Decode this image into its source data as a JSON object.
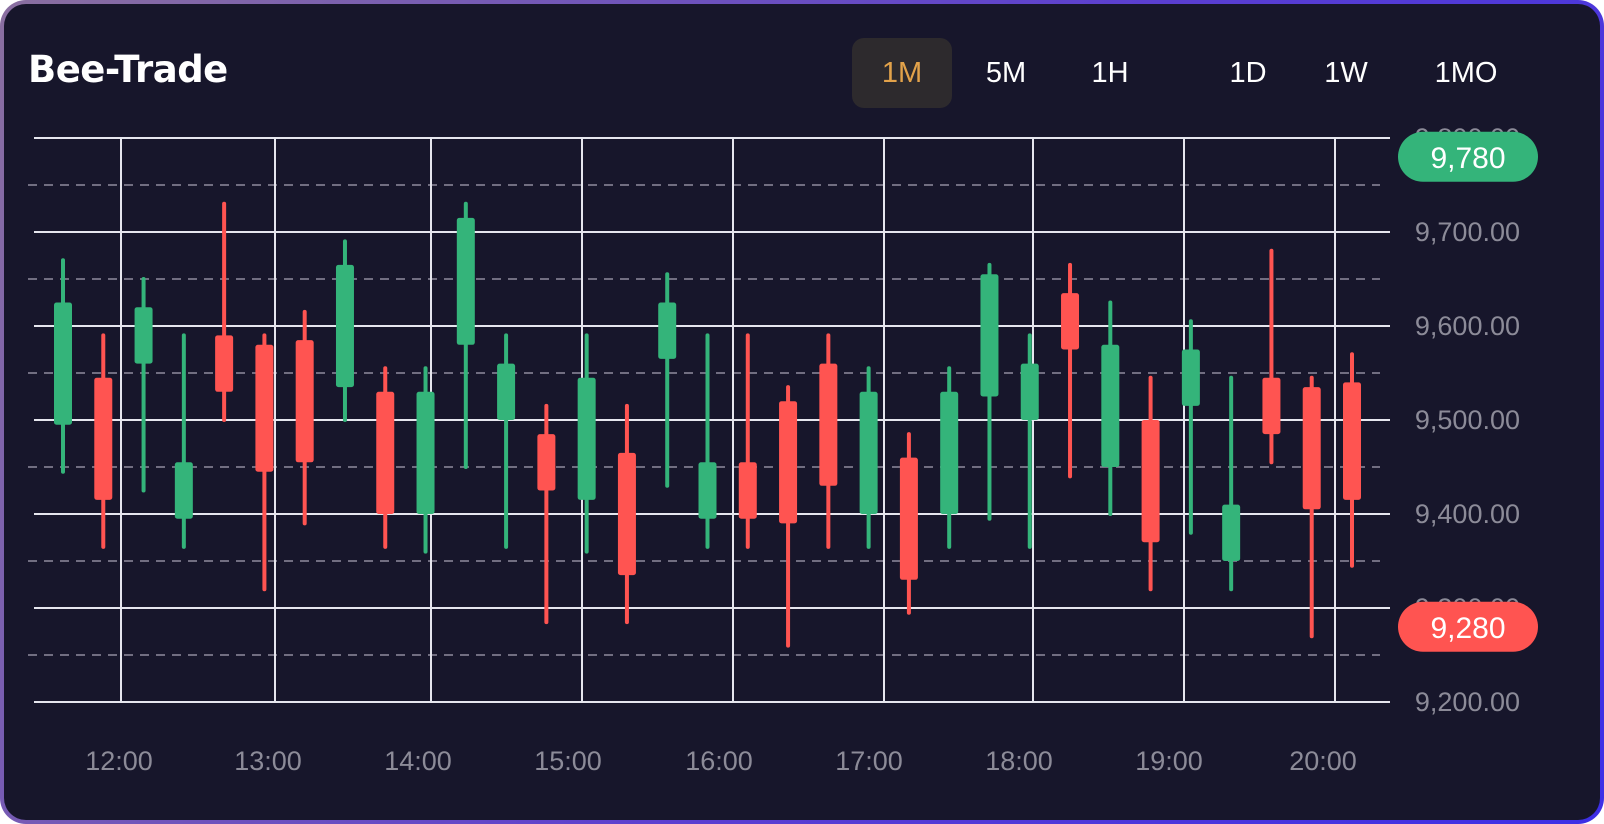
{
  "app": {
    "title": "Bee-Trade"
  },
  "timeframes": [
    {
      "label": "1M",
      "active": true
    },
    {
      "label": "5M",
      "active": false
    },
    {
      "label": "1H",
      "active": false
    },
    {
      "label": "1D",
      "active": false
    },
    {
      "label": "1W",
      "active": false
    },
    {
      "label": "1MO",
      "active": false
    }
  ],
  "colors": {
    "up": "#34b47a",
    "down": "#ff5451",
    "accent": "#e2a24a",
    "background": "#17162b",
    "grid": "#e6e6ee"
  },
  "chart_data": {
    "type": "candlestick",
    "title": "",
    "xlabel": "",
    "ylabel": "",
    "ylim": [
      9200,
      9800
    ],
    "y_ticks": [
      "9,800.00",
      "9,700.00",
      "9,600.00",
      "9,500.00",
      "9,400.00",
      "9,300.00",
      "9,200.00"
    ],
    "x_ticks": [
      "12:00",
      "13:00",
      "14:00",
      "15:00",
      "16:00",
      "17:00",
      "18:00",
      "19:00",
      "20:00"
    ],
    "grid": true,
    "badges": [
      {
        "label": "9,780",
        "value": 9780,
        "direction": "up"
      },
      {
        "label": "9,280",
        "value": 9280,
        "direction": "down"
      }
    ],
    "candles": [
      {
        "direction": "up",
        "open": 9495,
        "close": 9625,
        "high": 9670,
        "low": 9445
      },
      {
        "direction": "down",
        "open": 9545,
        "close": 9415,
        "high": 9590,
        "low": 9365
      },
      {
        "direction": "up",
        "open": 9560,
        "close": 9620,
        "high": 9650,
        "low": 9425
      },
      {
        "direction": "up",
        "open": 9395,
        "close": 9455,
        "high": 9590,
        "low": 9365
      },
      {
        "direction": "down",
        "open": 9590,
        "close": 9530,
        "high": 9730,
        "low": 9500
      },
      {
        "direction": "down",
        "open": 9580,
        "close": 9445,
        "high": 9590,
        "low": 9320
      },
      {
        "direction": "down",
        "open": 9585,
        "close": 9455,
        "high": 9615,
        "low": 9390
      },
      {
        "direction": "up",
        "open": 9535,
        "close": 9665,
        "high": 9690,
        "low": 9500
      },
      {
        "direction": "down",
        "open": 9530,
        "close": 9400,
        "high": 9555,
        "low": 9365
      },
      {
        "direction": "up",
        "open": 9400,
        "close": 9530,
        "high": 9555,
        "low": 9360
      },
      {
        "direction": "up",
        "open": 9580,
        "close": 9715,
        "high": 9730,
        "low": 9450
      },
      {
        "direction": "up",
        "open": 9500,
        "close": 9560,
        "high": 9590,
        "low": 9365
      },
      {
        "direction": "down",
        "open": 9485,
        "close": 9425,
        "high": 9515,
        "low": 9285
      },
      {
        "direction": "up",
        "open": 9415,
        "close": 9545,
        "high": 9590,
        "low": 9360
      },
      {
        "direction": "down",
        "open": 9465,
        "close": 9335,
        "high": 9515,
        "low": 9285
      },
      {
        "direction": "up",
        "open": 9565,
        "close": 9625,
        "high": 9655,
        "low": 9430
      },
      {
        "direction": "up",
        "open": 9395,
        "close": 9455,
        "high": 9590,
        "low": 9365
      },
      {
        "direction": "down",
        "open": 9455,
        "close": 9395,
        "high": 9590,
        "low": 9365
      },
      {
        "direction": "down",
        "open": 9520,
        "close": 9390,
        "high": 9535,
        "low": 9260
      },
      {
        "direction": "down",
        "open": 9560,
        "close": 9430,
        "high": 9590,
        "low": 9365
      },
      {
        "direction": "up",
        "open": 9400,
        "close": 9530,
        "high": 9555,
        "low": 9365
      },
      {
        "direction": "down",
        "open": 9460,
        "close": 9330,
        "high": 9485,
        "low": 9295
      },
      {
        "direction": "up",
        "open": 9400,
        "close": 9530,
        "high": 9555,
        "low": 9365
      },
      {
        "direction": "up",
        "open": 9525,
        "close": 9655,
        "high": 9665,
        "low": 9395
      },
      {
        "direction": "up",
        "open": 9500,
        "close": 9560,
        "high": 9590,
        "low": 9365
      },
      {
        "direction": "down",
        "open": 9635,
        "close": 9575,
        "high": 9665,
        "low": 9440
      },
      {
        "direction": "up",
        "open": 9450,
        "close": 9580,
        "high": 9625,
        "low": 9400
      },
      {
        "direction": "down",
        "open": 9500,
        "close": 9370,
        "high": 9545,
        "low": 9320
      },
      {
        "direction": "up",
        "open": 9515,
        "close": 9575,
        "high": 9605,
        "low": 9380
      },
      {
        "direction": "up",
        "open": 9350,
        "close": 9410,
        "high": 9545,
        "low": 9320
      },
      {
        "direction": "down",
        "open": 9545,
        "close": 9485,
        "high": 9680,
        "low": 9455
      },
      {
        "direction": "down",
        "open": 9535,
        "close": 9405,
        "high": 9545,
        "low": 9270
      },
      {
        "direction": "down",
        "open": 9540,
        "close": 9415,
        "high": 9570,
        "low": 9345
      }
    ]
  }
}
